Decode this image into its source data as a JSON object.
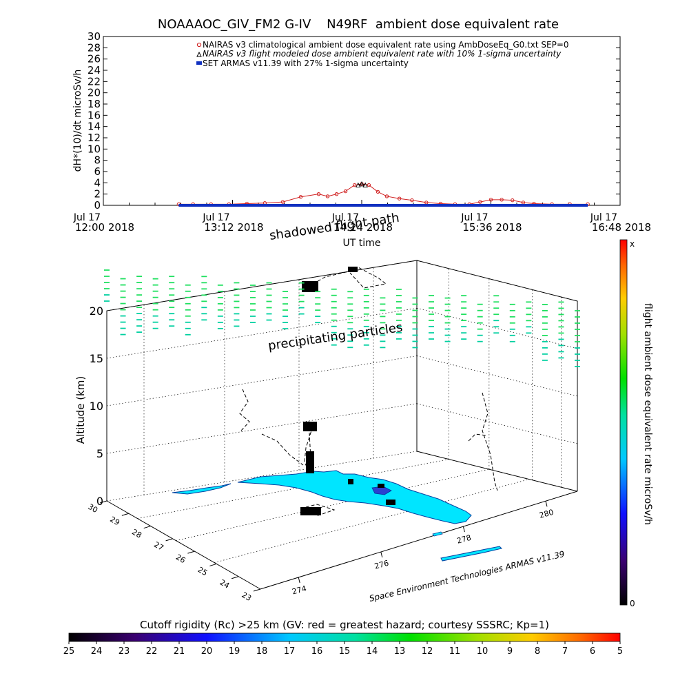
{
  "title": "NOAAAOC_GIV_FM2 G-IV    N49RF  ambient dose equivalent rate",
  "chart_data": [
    {
      "type": "line",
      "ylabel": "dH*(10)/dt microSv/h",
      "xlabel": "UT time",
      "ylim": [
        0,
        30
      ],
      "yticks": [
        "0",
        "2",
        "4",
        "6",
        "8",
        "10",
        "12",
        "14",
        "16",
        "18",
        "20",
        "22",
        "24",
        "26",
        "28",
        "30"
      ],
      "xticks": [
        {
          "line1": "Jul 17",
          "line2": "12:00 2018"
        },
        {
          "line1": "Jul 17",
          "line2": "13:12 2018"
        },
        {
          "line1": "Jul 17",
          "line2": "14:24 2018"
        },
        {
          "line1": "Jul 17",
          "line2": "15:36 2018"
        },
        {
          "line1": "Jul 17",
          "line2": "16:48 2018"
        }
      ],
      "legend_position": "top-right",
      "series": [
        {
          "name": "NAIRAS v3 climatological ambient dose equivalent rate using AmbDoseEq_G0.txt SEP=0",
          "color": "#d02020",
          "marker": "circle",
          "x": [
            "12:42",
            "12:50",
            "13:00",
            "13:10",
            "13:20",
            "13:30",
            "13:40",
            "13:50",
            "14:00",
            "14:05",
            "14:10",
            "14:15",
            "14:20",
            "14:24",
            "14:28",
            "14:33",
            "14:38",
            "14:45",
            "14:52",
            "15:00",
            "15:08",
            "15:16",
            "15:24",
            "15:30",
            "15:36",
            "15:42",
            "15:48",
            "15:54",
            "16:00",
            "16:10",
            "16:20",
            "16:30"
          ],
          "y": [
            0.2,
            0.2,
            0.2,
            0.2,
            0.3,
            0.4,
            0.6,
            1.5,
            2.0,
            1.6,
            2.0,
            2.5,
            3.6,
            3.8,
            3.6,
            2.4,
            1.6,
            1.2,
            0.9,
            0.5,
            0.3,
            0.2,
            0.2,
            0.6,
            1.0,
            1.0,
            0.9,
            0.5,
            0.3,
            0.2,
            0.2,
            0.2
          ]
        },
        {
          "name": "NAIRAS v3 flight modeled dose ambient equivalent rate with 10% 1-sigma uncertainty",
          "color": "#000000",
          "marker": "triangle",
          "x": [
            "14:22",
            "14:24",
            "14:26"
          ],
          "y": [
            3.6,
            3.8,
            3.6
          ]
        },
        {
          "name": "SET ARMAS v11.39 with 27% 1-sigma uncertainty",
          "color": "#1030c0",
          "marker": "square",
          "x": [
            "12:42",
            "13:00",
            "13:20",
            "13:40",
            "14:00",
            "14:20",
            "14:40",
            "15:00",
            "15:20",
            "15:40",
            "16:00",
            "16:20",
            "16:30"
          ],
          "y": [
            0,
            0,
            0,
            0,
            0,
            0,
            0,
            0,
            0,
            0,
            0,
            0,
            0
          ]
        }
      ]
    },
    {
      "type": "scatter",
      "zlabel": "Altitude (km)",
      "zticks": [
        "0",
        "5",
        "10",
        "15",
        "20"
      ],
      "lat_ticks": [
        "30",
        "29",
        "28",
        "27",
        "26",
        "25",
        "24",
        "23"
      ],
      "lon_ticks": [
        "274",
        "276",
        "278",
        "280"
      ],
      "annotations": [
        "shadowed flight path",
        "precipitating particles"
      ],
      "credit": "Space Environment Technologies ARMAS v11.39",
      "right_colorbar": {
        "label": "flight ambient dose equivalent rate microSv/h",
        "top": "x",
        "bottom": "0"
      }
    },
    {
      "type": "heatmap",
      "colorbar_title": "Cutoff rigidity (Rc) >25 km (GV: red = greatest hazard; courtesy SSSRC; Kp=1)",
      "ticks": [
        "25",
        "24",
        "23",
        "22",
        "21",
        "20",
        "19",
        "18",
        "17",
        "16",
        "15",
        "14",
        "13",
        "12",
        "11",
        "10",
        "9",
        "8",
        "7",
        "6",
        "5"
      ]
    }
  ]
}
